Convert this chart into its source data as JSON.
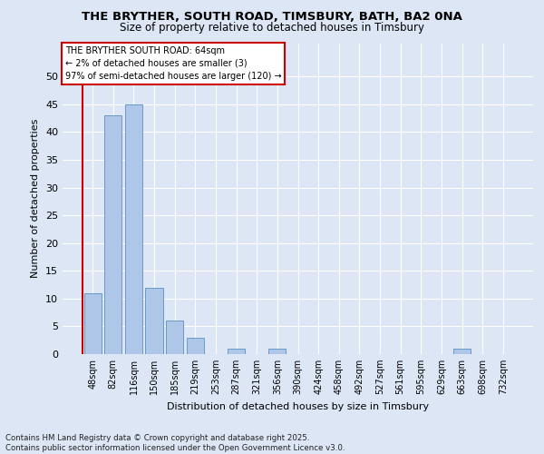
{
  "title1": "THE BRYTHER, SOUTH ROAD, TIMSBURY, BATH, BA2 0NA",
  "title2": "Size of property relative to detached houses in Timsbury",
  "xlabel": "Distribution of detached houses by size in Timsbury",
  "ylabel": "Number of detached properties",
  "categories": [
    "48sqm",
    "82sqm",
    "116sqm",
    "150sqm",
    "185sqm",
    "219sqm",
    "253sqm",
    "287sqm",
    "321sqm",
    "356sqm",
    "390sqm",
    "424sqm",
    "458sqm",
    "492sqm",
    "527sqm",
    "561sqm",
    "595sqm",
    "629sqm",
    "663sqm",
    "698sqm",
    "732sqm"
  ],
  "values": [
    11,
    43,
    45,
    12,
    6,
    3,
    0,
    1,
    0,
    1,
    0,
    0,
    0,
    0,
    0,
    0,
    0,
    0,
    1,
    0,
    0
  ],
  "bar_color": "#aec6e8",
  "bar_edge_color": "#5a8fc0",
  "annotation_box_text": "THE BRYTHER SOUTH ROAD: 64sqm\n← 2% of detached houses are smaller (3)\n97% of semi-detached houses are larger (120) →",
  "annotation_box_color": "#ffffff",
  "annotation_box_edge_color": "#cc0000",
  "background_color": "#dce6f5",
  "plot_bg_color": "#dce6f5",
  "grid_color": "#ffffff",
  "ylim": [
    0,
    56
  ],
  "yticks": [
    0,
    5,
    10,
    15,
    20,
    25,
    30,
    35,
    40,
    45,
    50
  ],
  "footer": "Contains HM Land Registry data © Crown copyright and database right 2025.\nContains public sector information licensed under the Open Government Licence v3.0.",
  "vline_color": "#cc0000",
  "title1_fontsize": 9.5,
  "title2_fontsize": 8.5
}
